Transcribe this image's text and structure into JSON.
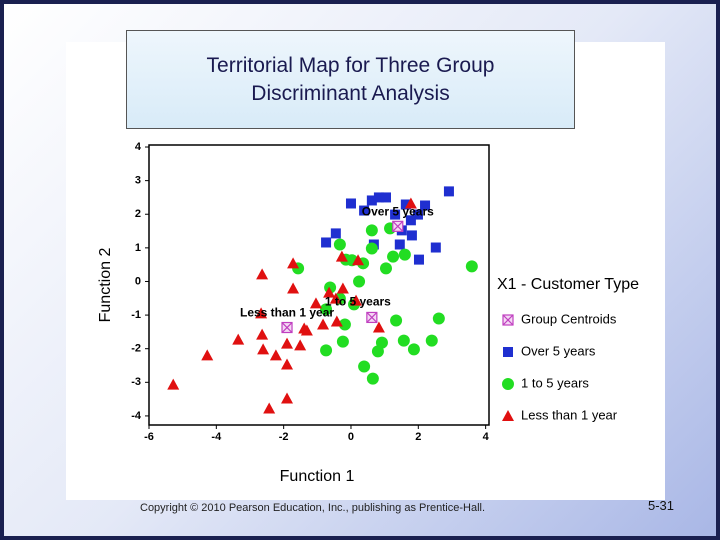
{
  "chart_data": {
    "type": "scatter",
    "title": "Territorial Map for Three Group Discriminant Analysis",
    "xlabel": "Function 1",
    "ylabel": "Function 2",
    "legend_title": "X1 - Customer Type",
    "xlim": [
      -6,
      4.1
    ],
    "ylim": [
      -4.27,
      4.06
    ],
    "xticks": [
      -6,
      -4,
      -2,
      0,
      2,
      4
    ],
    "yticks": [
      -4,
      -3,
      -2,
      -1,
      0,
      1,
      2,
      3,
      4
    ],
    "annotations": [
      "Over 5 years",
      "1 to 5 years",
      "Less than 1 year"
    ],
    "series": [
      {
        "name": "Group Centroids",
        "color": "#c040c0",
        "marker": "centroid",
        "x": [
          1.39,
          0.62,
          -1.9
        ],
        "y": [
          1.64,
          -1.07,
          -1.37
        ]
      },
      {
        "name": "Over 5 years",
        "color": "#1f2fd0",
        "marker": "square",
        "x": [
          0,
          0.62,
          0.83,
          1.04,
          1.63,
          2.2,
          2.91,
          0.39,
          1.31,
          1.99,
          1.51,
          1.81,
          1.45,
          -0.45,
          -0.74,
          0.68,
          2.02,
          2.52,
          1.78
        ],
        "y": [
          2.32,
          2.41,
          2.5,
          2.5,
          2.29,
          2.26,
          2.68,
          2.11,
          1.99,
          1.99,
          1.52,
          1.37,
          1.1,
          1.43,
          1.16,
          1.1,
          0.65,
          1.01,
          1.82
        ]
      },
      {
        "name": "1 to 5 years",
        "color": "#22dd22",
        "marker": "circle",
        "x": [
          -1.57,
          -0.33,
          -0.15,
          0.03,
          0.36,
          0.62,
          0.62,
          1.16,
          1.6,
          1.04,
          0.24,
          -0.62,
          -0.74,
          3.59,
          -0.33,
          0.09,
          -0.18,
          -0.74,
          -0.24,
          0.39,
          0.65,
          0.8,
          0.92,
          1.34,
          1.57,
          1.87,
          2.61,
          2.4,
          1.25
        ],
        "y": [
          0.39,
          1.1,
          0.65,
          0.63,
          0.54,
          1.52,
          0.98,
          1.58,
          0.8,
          0.39,
          0,
          -0.18,
          -0.83,
          0.45,
          -0.51,
          -0.68,
          -1.28,
          -2.05,
          -1.79,
          -2.53,
          -2.89,
          -2.08,
          -1.82,
          -1.16,
          -1.76,
          -2.02,
          -1.1,
          -1.76,
          0.74
        ]
      },
      {
        "name": "Less than 1 year",
        "color": "#e01010",
        "marker": "triangle",
        "x": [
          -5.28,
          -4.27,
          -3.35,
          -2.64,
          -2.64,
          -2.61,
          -2.23,
          -1.9,
          -1.9,
          -1.72,
          -1.72,
          -1.51,
          -1.39,
          -1.04,
          -1.31,
          -0.83,
          -0.42,
          -0.65,
          -0.45,
          -0.27,
          0.21,
          -0.24,
          0.15,
          0.83,
          -2.43,
          -1.9,
          1.78,
          -2.67
        ],
        "y": [
          -3.07,
          -2.2,
          -1.73,
          0.21,
          -1.58,
          -2.02,
          -2.2,
          -2.47,
          -1.85,
          -0.21,
          0.54,
          -1.9,
          -1.4,
          -0.65,
          -1.46,
          -1.28,
          -1.19,
          -0.33,
          -0.51,
          0.74,
          0.63,
          -0.21,
          -0.57,
          -1.37,
          -3.78,
          -3.48,
          2.32,
          -0.95
        ]
      }
    ]
  },
  "footer": {
    "copyright": "Copyright © 2010 Pearson Education, Inc., publishing as Prentice-Hall.",
    "page_number": "5-31"
  }
}
